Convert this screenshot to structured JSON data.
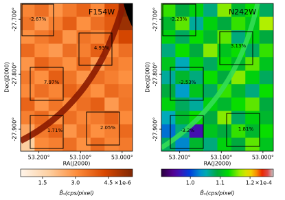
{
  "chart_data": [
    {
      "type": "heatmap",
      "title": "F154W",
      "xlabel": "RA(J2000)",
      "ylabel": "Dec(J2000)",
      "xlim": [
        53.244,
        52.975
      ],
      "xticks": [
        {
          "value": 53.2,
          "label": "53.200°"
        },
        {
          "value": 53.1,
          "label": "53.100°"
        },
        {
          "value": 53.0,
          "label": "53.000°"
        }
      ],
      "ylim": [
        -27.94,
        -27.671
      ],
      "yticks": [
        {
          "value": -27.7,
          "label": "-27.700°"
        },
        {
          "value": -27.8,
          "label": "-27.800°"
        },
        {
          "value": -27.9,
          "label": "-27.900°"
        }
      ],
      "colormap": "oranges",
      "values": [
        [
          3.2,
          3.6,
          2.9,
          3.4,
          3.8,
          3.1,
          4.2,
          5.5
        ],
        [
          3.5,
          2.8,
          3.3,
          3.9,
          3.0,
          3.6,
          4.0,
          5.2
        ],
        [
          3.0,
          3.4,
          3.7,
          2.9,
          3.5,
          3.2,
          3.8,
          4.4
        ],
        [
          3.7,
          3.1,
          2.8,
          3.6,
          3.3,
          3.9,
          3.1,
          3.6
        ],
        [
          2.9,
          3.8,
          3.4,
          3.0,
          3.7,
          2.8,
          3.5,
          3.2
        ],
        [
          3.4,
          3.0,
          3.9,
          3.5,
          2.9,
          3.6,
          3.3,
          3.0
        ],
        [
          3.1,
          3.6,
          3.2,
          3.8,
          3.4,
          3.0,
          3.7,
          3.4
        ],
        [
          3.8,
          2.9,
          3.5,
          3.1,
          3.6,
          3.9,
          2.8,
          3.5
        ],
        [
          3.3,
          3.7,
          3.0,
          3.6,
          3.2,
          3.4,
          3.8,
          3.1
        ],
        [
          2.6,
          3.4,
          3.8,
          2.9,
          3.5,
          3.0,
          3.3,
          3.7
        ],
        [
          1.8,
          3.1,
          3.3,
          3.6,
          3.0,
          3.7,
          3.2,
          3.4
        ]
      ],
      "annotations": [
        "-2.67%",
        "4.93%",
        "7.97%",
        "1.71%",
        "2.05%"
      ],
      "colorbar_lim": [
        0.5,
        5.6
      ],
      "colorbar_ticks": [
        1.5,
        {
          "value": 3,
          "label": "3.0"
        },
        4.5
      ],
      "colorbar_offset": "×1e-6",
      "colorbar_label": "B̄ₛ(cps/pixel)"
    },
    {
      "type": "heatmap",
      "title": "N242W",
      "xlabel": "RA(J2000)",
      "ylabel": "Dec(J2000)",
      "xlim": [
        53.244,
        52.975
      ],
      "xticks": [
        {
          "value": 53.2,
          "label": "53.200°"
        },
        {
          "value": 53.1,
          "label": "53.100°"
        },
        {
          "value": 53.0,
          "label": "53.000°"
        }
      ],
      "ylim": [
        -27.94,
        -27.671
      ],
      "yticks": [
        {
          "value": -27.7,
          "label": "-27.700°"
        },
        {
          "value": -27.8,
          "label": "-27.800°"
        },
        {
          "value": -27.9,
          "label": "-27.900°"
        }
      ],
      "colormap": "spectral",
      "values": [
        [
          1.14,
          1.09,
          1.12,
          1.07,
          1.16,
          1.1,
          1.13,
          1.08
        ],
        [
          1.1,
          1.15,
          1.06,
          1.12,
          1.09,
          1.14,
          1.11,
          1.17
        ],
        [
          1.12,
          1.08,
          1.13,
          1.1,
          1.15,
          1.07,
          1.12,
          1.09
        ],
        [
          1.07,
          1.13,
          1.09,
          1.16,
          1.11,
          1.13,
          1.08,
          1.14
        ],
        [
          1.11,
          1.05,
          1.12,
          1.08,
          1.13,
          1.1,
          1.15,
          1.11
        ],
        [
          1.06,
          1.1,
          1.07,
          1.13,
          1.09,
          1.16,
          1.12,
          1.08
        ],
        [
          1.09,
          1.04,
          1.11,
          1.08,
          1.14,
          1.1,
          1.07,
          1.13
        ],
        [
          1.12,
          1.08,
          1.06,
          1.12,
          1.1,
          1.13,
          1.15,
          1.09
        ],
        [
          1.05,
          1.1,
          1.13,
          1.09,
          1.16,
          1.08,
          1.12,
          1.1
        ],
        [
          1.02,
          1.07,
          0.96,
          1.11,
          1.09,
          1.14,
          1.1,
          1.13
        ],
        [
          1.08,
          1.03,
          1.1,
          1.07,
          1.12,
          1.09,
          1.15,
          1.11
        ]
      ],
      "annotations": [
        "-2.23%",
        "3.13%",
        "-2.53%",
        "-3.2%",
        "1.81%"
      ],
      "colorbar_lim": [
        0.903,
        1.278
      ],
      "colorbar_ticks": [
        {
          "value": 1,
          "label": "1.0"
        },
        1.1,
        1.2
      ],
      "colorbar_offset": "×1e-4",
      "colorbar_label": "B̄ₛ(cps/pixel)"
    }
  ]
}
